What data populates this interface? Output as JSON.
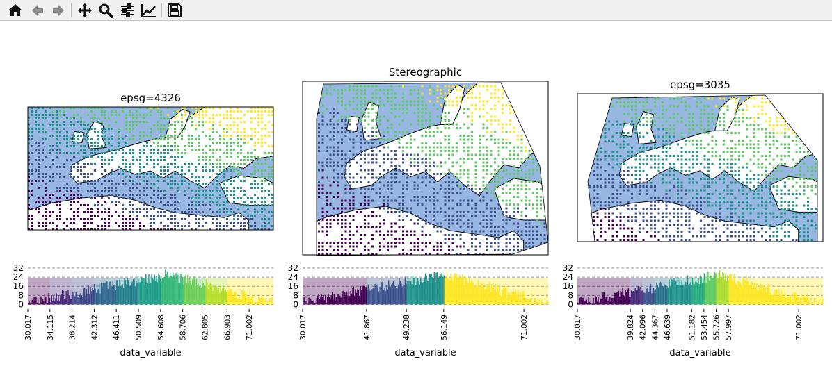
{
  "toolbar": {
    "buttons": [
      {
        "name": "home-button",
        "icon": "home-icon"
      },
      {
        "name": "back-button",
        "icon": "arrow-left-icon"
      },
      {
        "name": "forward-button",
        "icon": "arrow-right-icon"
      },
      {
        "name": "pan-button",
        "icon": "move-icon"
      },
      {
        "name": "zoom-button",
        "icon": "zoom-icon"
      },
      {
        "name": "configure-subplots-button",
        "icon": "sliders-icon"
      },
      {
        "name": "edit-axis-button",
        "icon": "line-chart-icon"
      },
      {
        "name": "save-button",
        "icon": "floppy-disk-icon"
      }
    ]
  },
  "colors": {
    "ocean": "#97b6e1",
    "land": "#ffffff",
    "coast": "#000000",
    "grid": "#7f7f7f",
    "viridis": [
      "#440154",
      "#3b528b",
      "#21918c",
      "#5ec962",
      "#fde725"
    ]
  },
  "chart_data": [
    {
      "type": "scatter",
      "title": "epsg=4326",
      "projection": "PlateCarree",
      "region": "Europe and Mediterranean",
      "ocean_color": "#97b6e1",
      "classes": 10,
      "colormap": "viridis"
    },
    {
      "type": "scatter",
      "title": "Stereographic",
      "projection": "Stereographic",
      "region": "Europe and Mediterranean",
      "ocean_color": "#97b6e1",
      "classes": 4,
      "colormap": "viridis"
    },
    {
      "type": "scatter",
      "title": "epsg=3035",
      "projection": "LAEA Europe",
      "region": "Europe and Mediterranean",
      "ocean_color": "#97b6e1",
      "classes": 9,
      "colormap": "viridis"
    },
    {
      "type": "bar",
      "xlabel": "data_variable",
      "ylabel": "",
      "xlim": [
        30.017,
        75.5
      ],
      "ylim": [
        -4,
        35
      ],
      "yticks": [
        0,
        8,
        16,
        24,
        32
      ],
      "grid": "horizontal dashed",
      "xticks": [
        30.017,
        34.115,
        38.214,
        42.312,
        46.411,
        50.509,
        54.608,
        58.706,
        62.805,
        66.903,
        71.002
      ],
      "xtick_labels": [
        "30.017",
        "34.115",
        "38.214",
        "42.312",
        "46.411",
        "50.509",
        "54.608",
        "58.706",
        "62.805",
        "66.903",
        "71.002"
      ],
      "class_breaks": [
        30.017,
        34.115,
        38.214,
        42.312,
        46.411,
        50.509,
        54.608,
        58.706,
        62.805,
        66.903,
        75.5
      ],
      "class_colors": [
        "#440154",
        "#482878",
        "#3e4989",
        "#31688e",
        "#26828e",
        "#1f9e89",
        "#35b779",
        "#6ece58",
        "#b5de2b",
        "#fde725"
      ]
    },
    {
      "type": "bar",
      "xlabel": "data_variable",
      "ylabel": "",
      "xlim": [
        30.017,
        75.5
      ],
      "ylim": [
        -4,
        35
      ],
      "yticks": [
        0,
        8,
        16,
        24,
        32
      ],
      "grid": "horizontal dashed",
      "xticks": [
        30.017,
        41.867,
        49.238,
        56.149,
        71.002
      ],
      "xtick_labels": [
        "30.017",
        "41.867",
        "49.238",
        "56.149",
        "71.002"
      ],
      "class_breaks": [
        30.017,
        41.867,
        49.238,
        56.149,
        75.5
      ],
      "class_colors": [
        "#440154",
        "#3b528b",
        "#21918c",
        "#fde725"
      ]
    },
    {
      "type": "bar",
      "xlabel": "data_variable",
      "ylabel": "",
      "xlim": [
        30.017,
        75.5
      ],
      "ylim": [
        -4,
        35
      ],
      "yticks": [
        0,
        8,
        16,
        24,
        32
      ],
      "grid": "horizontal dashed",
      "xticks": [
        30.017,
        39.824,
        42.096,
        44.367,
        46.639,
        51.182,
        53.454,
        55.726,
        57.997,
        71.002
      ],
      "xtick_labels": [
        "30.017",
        "39.824",
        "42.096",
        "44.367",
        "46.639",
        "51.182",
        "53.454",
        "55.726",
        "57.997",
        "71.002"
      ],
      "class_breaks": [
        30.017,
        39.824,
        42.096,
        44.367,
        46.639,
        51.182,
        53.454,
        55.726,
        57.997,
        75.5
      ],
      "class_colors": [
        "#440154",
        "#472d7b",
        "#3b528b",
        "#2c728e",
        "#21918c",
        "#28ae80",
        "#5ec962",
        "#addc30",
        "#fde725"
      ]
    }
  ]
}
